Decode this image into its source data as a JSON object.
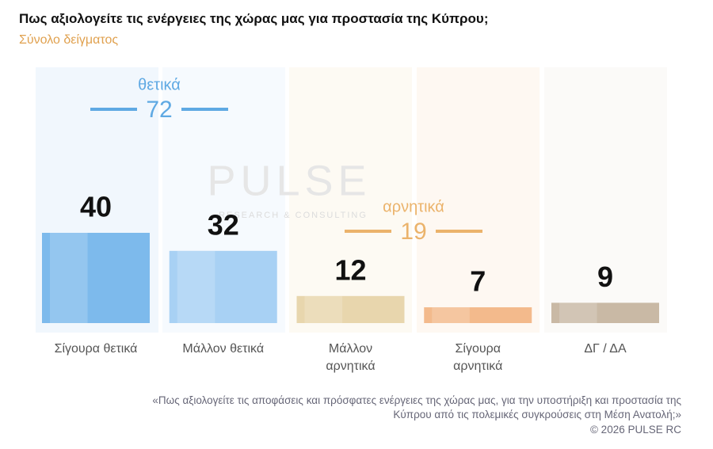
{
  "chart_data": {
    "type": "bar",
    "title": "Πως αξιολογείτε τις ενέργειες της χώρας μας για προστασία της Κύπρου;",
    "subtitle": "Σύνολο δείγματος",
    "categories": [
      "Σίγουρα θετικά",
      "Μάλλον θετικά",
      "Μάλλον αρνητικά",
      "Σίγουρα αρνητικά",
      "ΔΓ / ΔΑ"
    ],
    "values": [
      40,
      32,
      12,
      7,
      9
    ],
    "colors": [
      "#7dbaec",
      "#a8d1f4",
      "#e8d6ad",
      "#f3ba8c",
      "#c9b9a5"
    ],
    "groups": [
      {
        "name": "θετικά",
        "value": 72,
        "color": "#5fa9e3"
      },
      {
        "name": "αρνητικά",
        "value": 19,
        "color": "#ebb36b"
      }
    ],
    "watermark": "PULSE",
    "watermark_subtitle": "RESEARCH & CONSULTING",
    "note": "«Πως αξιολογείτε τις αποφάσεις και πρόσφατες ενέργειες της χώρας μας, για την υποστήριξη και προστασία της Κύπρου από τις πολεμικές συγκρούσεις στη Μέση Ανατολή;»",
    "source": "© 2026 PULSE RC"
  }
}
